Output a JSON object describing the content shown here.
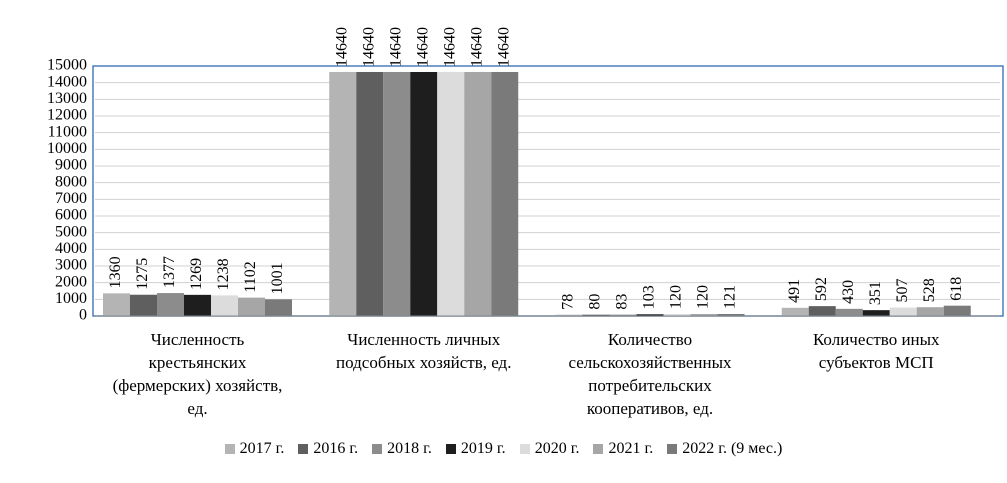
{
  "chart_data": {
    "type": "bar",
    "categories": [
      "Численность крестьянских (фермерских) хозяйств, ед.",
      "Численность личных подсобных хозяйств, ед.",
      "Количество сельскохозяйственных потребительских кооперативов, ед.",
      "Количество иных субъектов МСП"
    ],
    "series": [
      {
        "name": "2017 г.",
        "color": "#b4b4b4",
        "values": [
          1360,
          14640,
          78,
          491
        ]
      },
      {
        "name": "2016 г.",
        "color": "#5f5f5f",
        "values": [
          1275,
          14640,
          80,
          592
        ]
      },
      {
        "name": "2018 г.",
        "color": "#8c8c8c",
        "values": [
          1377,
          14640,
          83,
          430
        ]
      },
      {
        "name": "2019 г.",
        "color": "#1e1e1e",
        "values": [
          1269,
          14640,
          103,
          351
        ]
      },
      {
        "name": "2020 г.",
        "color": "#dcdcdc",
        "values": [
          1238,
          14640,
          120,
          507
        ]
      },
      {
        "name": "2021 г.",
        "color": "#a6a6a6",
        "values": [
          1102,
          14640,
          120,
          528
        ]
      },
      {
        "name": "2022 г. (9 мес.)",
        "color": "#7a7a7a",
        "values": [
          1001,
          14640,
          121,
          618
        ]
      }
    ],
    "ylim": [
      0,
      15000
    ],
    "yticks": [
      0,
      1000,
      2000,
      3000,
      4000,
      5000,
      6000,
      7000,
      8000,
      9000,
      10000,
      11000,
      12000,
      13000,
      14000,
      15000
    ],
    "grid": true
  }
}
